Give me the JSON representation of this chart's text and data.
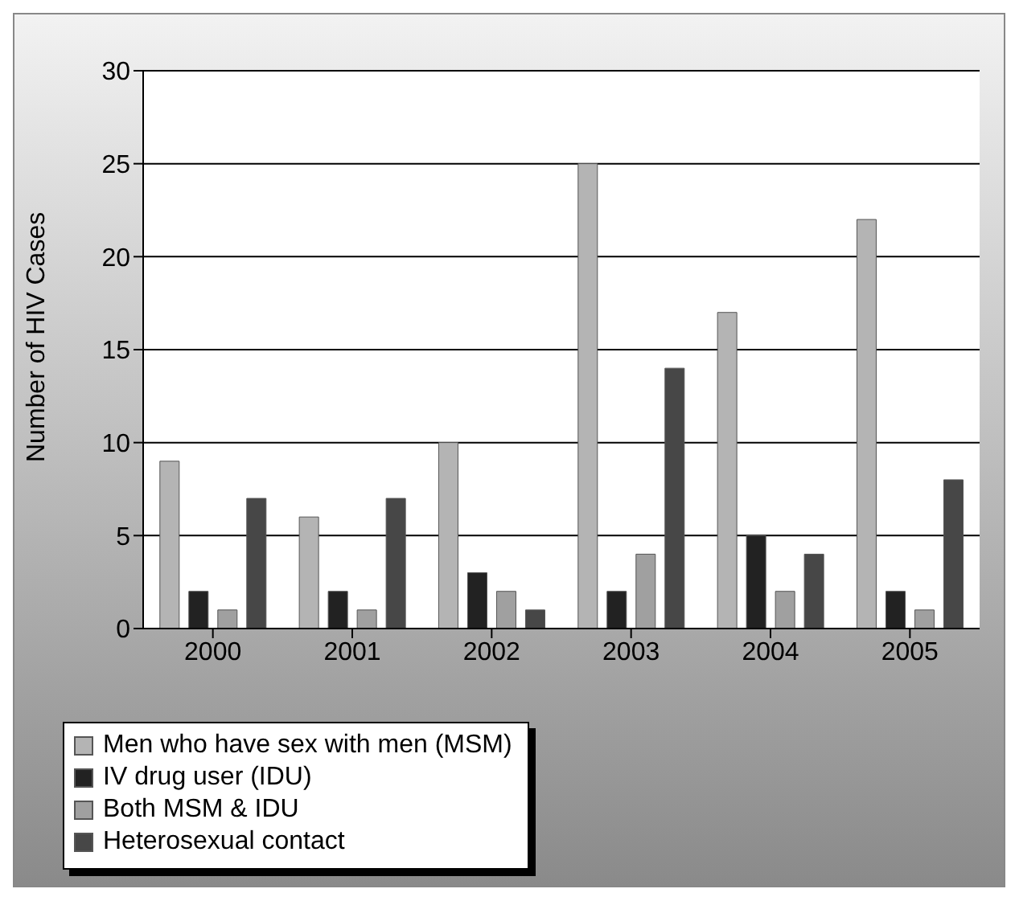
{
  "chart_data": {
    "type": "bar",
    "ylabel": "Number of HIV Cases",
    "categories": [
      "2000",
      "2001",
      "2002",
      "2003",
      "2004",
      "2005"
    ],
    "series": [
      {
        "name": "Men who have sex with men (MSM)",
        "color": "#b4b4b4",
        "values": [
          9,
          6,
          10,
          25,
          17,
          22
        ]
      },
      {
        "name": "IV drug user (IDU)",
        "color": "#222222",
        "values": [
          2,
          2,
          3,
          2,
          5,
          2
        ]
      },
      {
        "name": "Both MSM & IDU",
        "color": "#a0a0a0",
        "values": [
          1,
          1,
          2,
          4,
          2,
          1
        ]
      },
      {
        "name": "Heterosexual contact",
        "color": "#474747",
        "values": [
          7,
          7,
          1,
          14,
          4,
          8
        ]
      }
    ],
    "ylim": [
      0,
      30
    ],
    "yticks": [
      0,
      5,
      10,
      15,
      20,
      25,
      30
    ],
    "grid": "y",
    "legend": "bottom"
  }
}
